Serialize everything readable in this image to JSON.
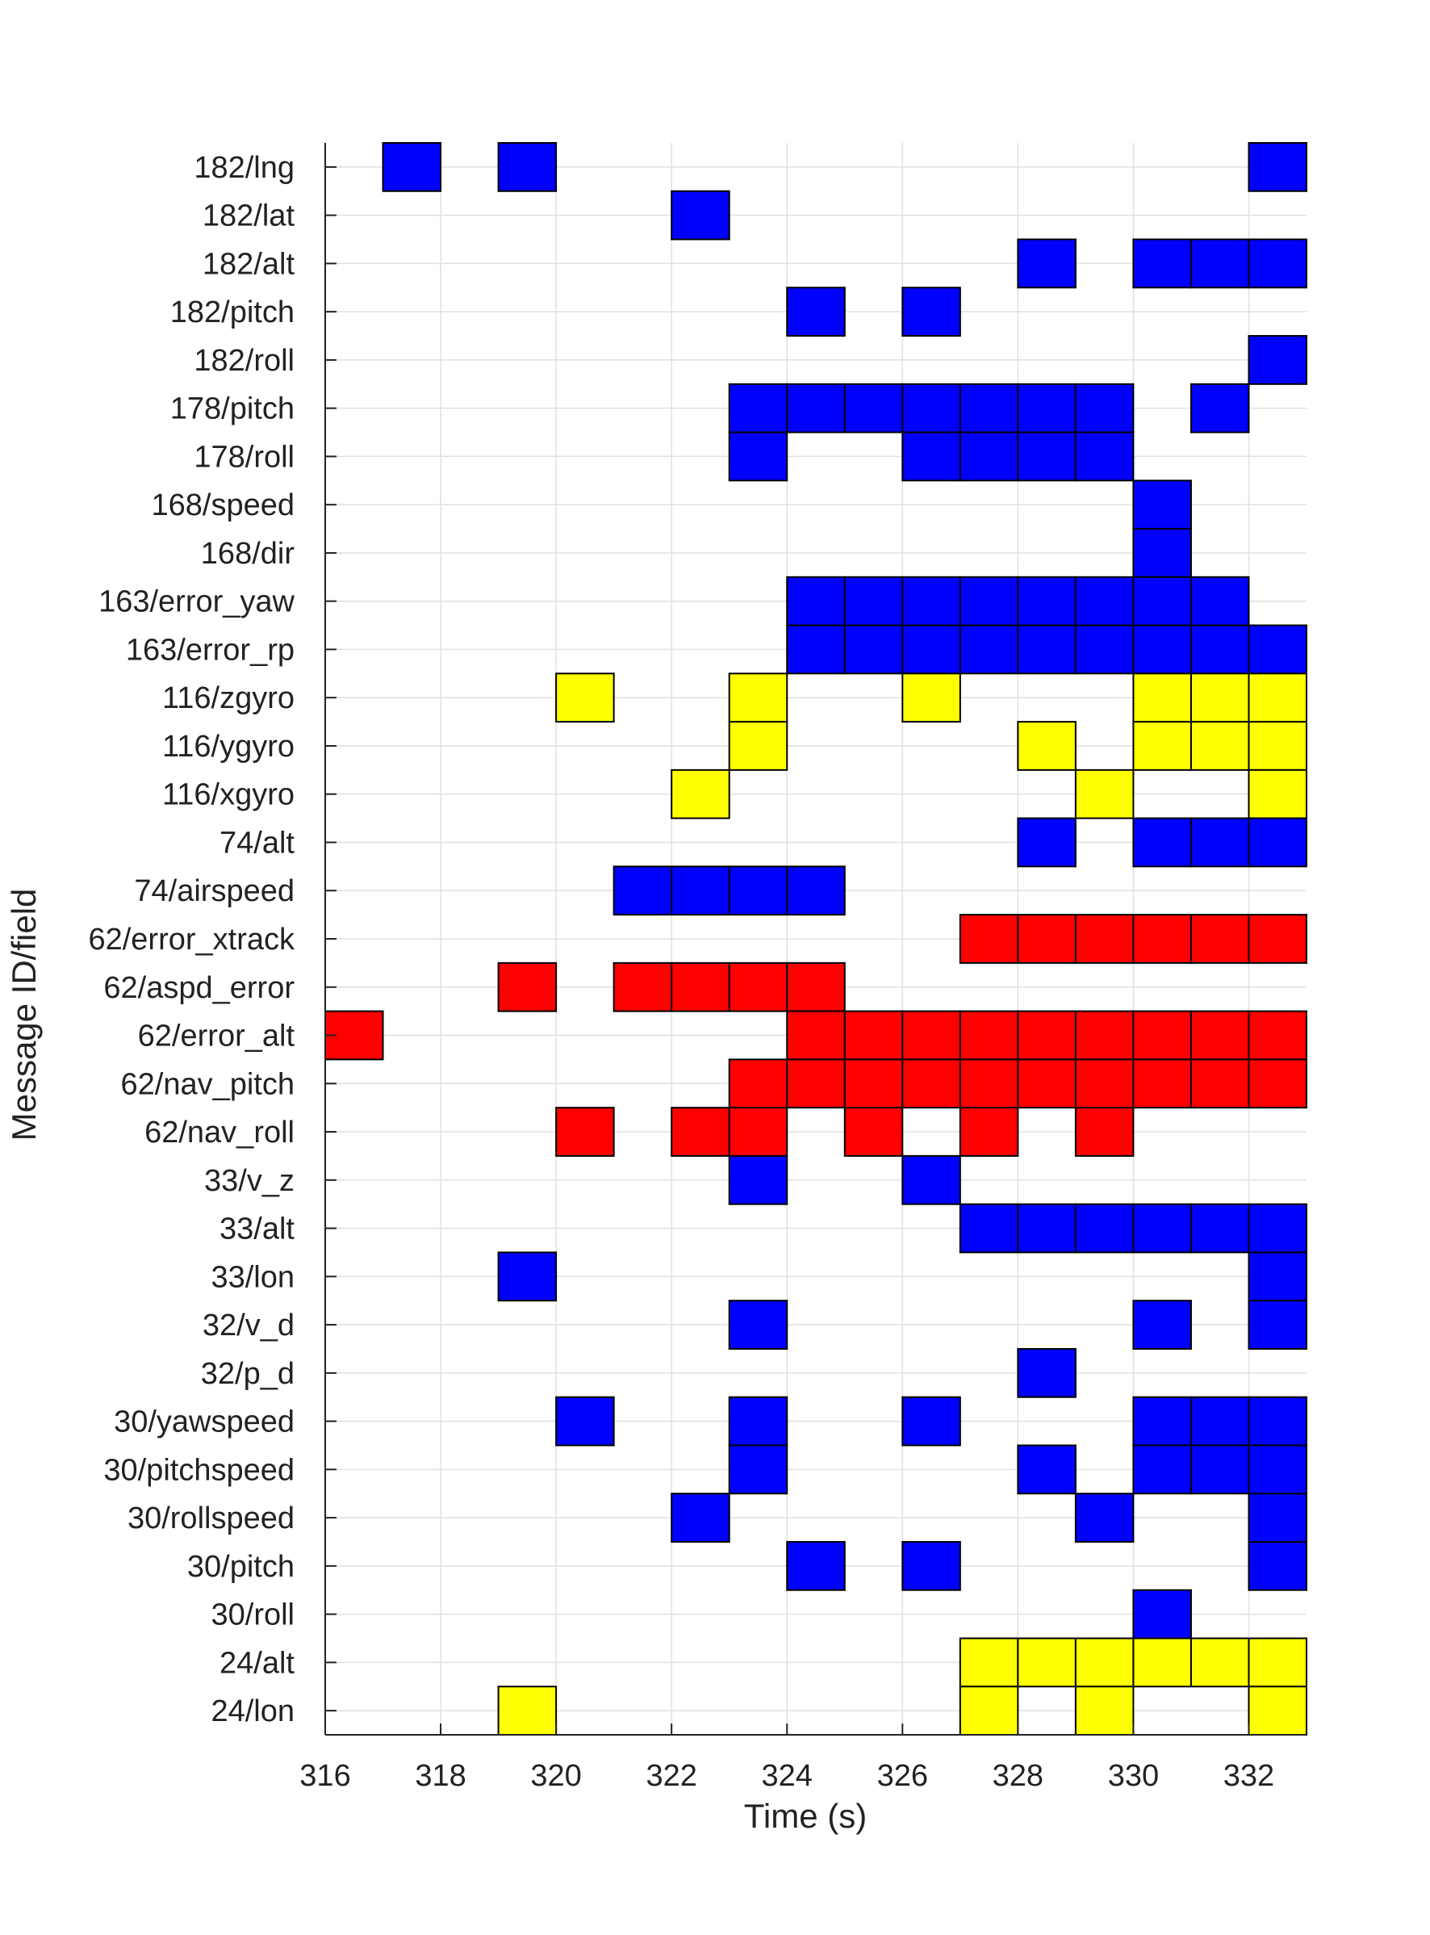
{
  "chart_data": {
    "type": "heatmap",
    "title": "",
    "xlabel": "Time (s)",
    "ylabel": "Message ID/field",
    "xlim": [
      316,
      333
    ],
    "x_ticks": [
      316,
      318,
      320,
      322,
      324,
      326,
      328,
      330,
      332
    ],
    "bin_width": 1,
    "grid": true,
    "colors": {
      "blue": "#0000ff",
      "red": "#ff0000",
      "yellow": "#ffff00",
      "edge": "#000000",
      "grid": "#e0e0e0",
      "axis": "#222222"
    },
    "rows": [
      {
        "label": "182/lng",
        "color": "blue",
        "cells": [
          317,
          319,
          332
        ]
      },
      {
        "label": "182/lat",
        "color": "blue",
        "cells": [
          322
        ]
      },
      {
        "label": "182/alt",
        "color": "blue",
        "cells": [
          328,
          330,
          331,
          332
        ]
      },
      {
        "label": "182/pitch",
        "color": "blue",
        "cells": [
          324,
          326
        ]
      },
      {
        "label": "182/roll",
        "color": "blue",
        "cells": [
          332
        ]
      },
      {
        "label": "178/pitch",
        "color": "blue",
        "cells": [
          323,
          324,
          325,
          326,
          327,
          328,
          329,
          331
        ]
      },
      {
        "label": "178/roll",
        "color": "blue",
        "cells": [
          323,
          326,
          327,
          328,
          329
        ]
      },
      {
        "label": "168/speed",
        "color": "blue",
        "cells": [
          330
        ]
      },
      {
        "label": "168/dir",
        "color": "blue",
        "cells": [
          330
        ]
      },
      {
        "label": "163/error_yaw",
        "color": "blue",
        "cells": [
          324,
          325,
          326,
          327,
          328,
          329,
          330,
          331
        ]
      },
      {
        "label": "163/error_rp",
        "color": "blue",
        "cells": [
          324,
          325,
          326,
          327,
          328,
          329,
          330,
          331,
          332
        ]
      },
      {
        "label": "116/zgyro",
        "color": "yellow",
        "cells": [
          320,
          323,
          326,
          330,
          331,
          332
        ]
      },
      {
        "label": "116/ygyro",
        "color": "yellow",
        "cells": [
          323,
          328,
          330,
          331,
          332
        ]
      },
      {
        "label": "116/xgyro",
        "color": "yellow",
        "cells": [
          322,
          329,
          332
        ]
      },
      {
        "label": "74/alt",
        "color": "blue",
        "cells": [
          328,
          330,
          331,
          332
        ]
      },
      {
        "label": "74/airspeed",
        "color": "blue",
        "cells": [
          321,
          322,
          323,
          324
        ]
      },
      {
        "label": "62/error_xtrack",
        "color": "red",
        "cells": [
          327,
          328,
          329,
          330,
          331,
          332
        ]
      },
      {
        "label": "62/aspd_error",
        "color": "red",
        "cells": [
          319,
          321,
          322,
          323,
          324
        ]
      },
      {
        "label": "62/error_alt",
        "color": "red",
        "cells": [
          316,
          324,
          325,
          326,
          327,
          328,
          329,
          330,
          331,
          332
        ]
      },
      {
        "label": "62/nav_pitch",
        "color": "red",
        "cells": [
          323,
          324,
          325,
          326,
          327,
          328,
          329,
          330,
          331,
          332
        ]
      },
      {
        "label": "62/nav_roll",
        "color": "red",
        "cells": [
          320,
          322,
          323,
          325,
          327,
          329
        ]
      },
      {
        "label": "33/v_z",
        "color": "blue",
        "cells": [
          323,
          326
        ]
      },
      {
        "label": "33/alt",
        "color": "blue",
        "cells": [
          327,
          328,
          329,
          330,
          331,
          332
        ]
      },
      {
        "label": "33/lon",
        "color": "blue",
        "cells": [
          319,
          332
        ]
      },
      {
        "label": "32/v_d",
        "color": "blue",
        "cells": [
          323,
          330,
          332
        ]
      },
      {
        "label": "32/p_d",
        "color": "blue",
        "cells": [
          328
        ]
      },
      {
        "label": "30/yawspeed",
        "color": "blue",
        "cells": [
          320,
          323,
          326,
          330,
          331,
          332
        ]
      },
      {
        "label": "30/pitchspeed",
        "color": "blue",
        "cells": [
          323,
          328,
          330,
          331,
          332
        ]
      },
      {
        "label": "30/rollspeed",
        "color": "blue",
        "cells": [
          322,
          329,
          332
        ]
      },
      {
        "label": "30/pitch",
        "color": "blue",
        "cells": [
          324,
          326,
          332
        ]
      },
      {
        "label": "30/roll",
        "color": "blue",
        "cells": [
          330
        ]
      },
      {
        "label": "24/alt",
        "color": "yellow",
        "cells": [
          327,
          328,
          329,
          330,
          331,
          332
        ]
      },
      {
        "label": "24/lon",
        "color": "yellow",
        "cells": [
          319,
          327,
          329,
          332
        ]
      }
    ]
  }
}
